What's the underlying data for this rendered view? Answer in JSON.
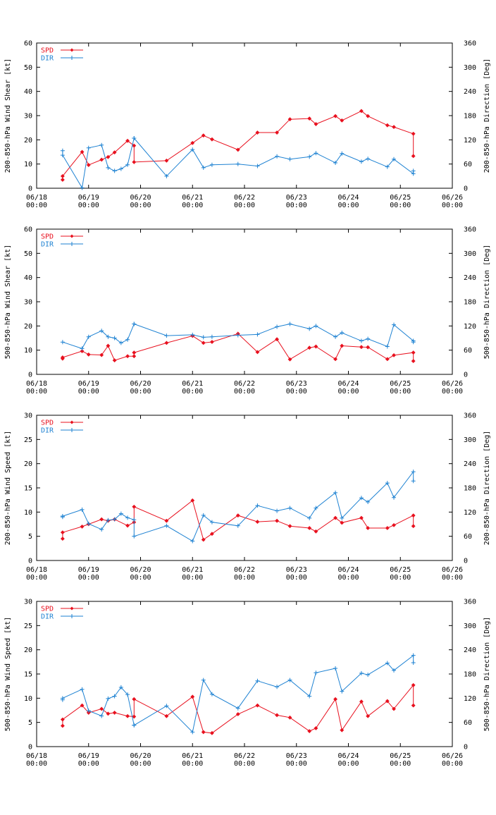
{
  "chart_data": [
    {
      "type": "line",
      "ylabel": "200-850-hPa Wind Shear [kt]",
      "y2label": "200-850-hPa Direction [Deg]",
      "ylim": [
        0,
        60
      ],
      "y2lim": [
        0,
        360
      ],
      "yticks": [
        "0",
        "10",
        "20",
        "30",
        "40",
        "50",
        "60"
      ],
      "y2ticks": [
        "0",
        "60",
        "120",
        "180",
        "240",
        "300",
        "360"
      ],
      "xlim": [
        0,
        8
      ],
      "xticks": [
        {
          "date": "06/18",
          "time": "00:00"
        },
        {
          "date": "06/19",
          "time": "00:00"
        },
        {
          "date": "06/20",
          "time": "00:00"
        },
        {
          "date": "06/21",
          "time": "00:00"
        },
        {
          "date": "06/22",
          "time": "00:00"
        },
        {
          "date": "06/23",
          "time": "00:00"
        },
        {
          "date": "06/24",
          "time": "00:00"
        },
        {
          "date": "06/25",
          "time": "00:00"
        },
        {
          "date": "06/26",
          "time": "00:00"
        }
      ],
      "legend": [
        "SPD",
        "DIR"
      ],
      "legend_position": "top-left",
      "series": [
        {
          "name": "SPD",
          "axis": "left",
          "color": "#e8101e",
          "x": [
            0.5,
            0.5,
            0.875,
            1.0,
            1.25,
            1.375,
            1.5,
            1.75,
            1.875,
            1.875,
            2.5,
            3.0,
            3.21,
            3.375,
            3.875,
            4.25,
            4.625,
            4.875,
            5.25,
            5.375,
            5.75,
            5.875,
            6.25,
            6.375,
            6.75,
            6.875,
            7.25,
            7.25
          ],
          "y": [
            3.5,
            5,
            15,
            9.6,
            11.8,
            12.9,
            14.8,
            19.6,
            17.6,
            10.8,
            11.4,
            18.7,
            21.8,
            20.2,
            15.9,
            23,
            23,
            28.5,
            28.8,
            26.5,
            29.8,
            28,
            31.9,
            29.8,
            26,
            25.3,
            22.5,
            13.3
          ]
        },
        {
          "name": "DIR",
          "axis": "right",
          "color": "#1e82d2",
          "x": [
            0.5,
            0.5,
            0.875,
            1.0,
            1.25,
            1.375,
            1.5,
            1.625,
            1.75,
            1.875,
            1.875,
            2.5,
            3.0,
            3.21,
            3.375,
            3.875,
            4.25,
            4.625,
            4.875,
            5.25,
            5.375,
            5.75,
            5.875,
            6.25,
            6.375,
            6.75,
            6.875,
            7.25,
            7.25
          ],
          "y": [
            93,
            82,
            1,
            100,
            107,
            51,
            43,
            48,
            58,
            124,
            124,
            30,
            96,
            51,
            58,
            60,
            55,
            79,
            72,
            78,
            87,
            63,
            86,
            66,
            73,
            53,
            72,
            36,
            43
          ]
        }
      ]
    },
    {
      "type": "line",
      "ylabel": "500-850-hPa Wind Shear [kt]",
      "y2label": "500-850-hPa Direction [Deg]",
      "ylim": [
        0,
        60
      ],
      "y2lim": [
        0,
        360
      ],
      "yticks": [
        "0",
        "10",
        "20",
        "30",
        "40",
        "50",
        "60"
      ],
      "y2ticks": [
        "0",
        "60",
        "120",
        "180",
        "240",
        "300",
        "360"
      ],
      "xlim": [
        0,
        8
      ],
      "xticks": [
        {
          "date": "06/18",
          "time": "00:00"
        },
        {
          "date": "06/19",
          "time": "00:00"
        },
        {
          "date": "06/20",
          "time": "00:00"
        },
        {
          "date": "06/21",
          "time": "00:00"
        },
        {
          "date": "06/22",
          "time": "00:00"
        },
        {
          "date": "06/23",
          "time": "00:00"
        },
        {
          "date": "06/24",
          "time": "00:00"
        },
        {
          "date": "06/25",
          "time": "00:00"
        },
        {
          "date": "06/26",
          "time": "00:00"
        }
      ],
      "legend": [
        "SPD",
        "DIR"
      ],
      "legend_position": "top-left",
      "series": [
        {
          "name": "SPD",
          "axis": "left",
          "color": "#e8101e",
          "x": [
            0.5,
            0.5,
            0.875,
            1.0,
            1.25,
            1.375,
            1.5,
            1.75,
            1.875,
            1.875,
            2.5,
            3.0,
            3.21,
            3.375,
            3.875,
            4.25,
            4.625,
            4.875,
            5.25,
            5.375,
            5.75,
            5.875,
            6.25,
            6.375,
            6.75,
            6.875,
            7.25,
            7.25
          ],
          "y": [
            6.5,
            7,
            9.6,
            8.2,
            8,
            11.8,
            5.8,
            7.5,
            7.5,
            9,
            13,
            15.9,
            13,
            13.4,
            16.8,
            9.2,
            14.5,
            6.2,
            11,
            11.5,
            6.3,
            11.8,
            11.3,
            11.2,
            6.3,
            7.9,
            9,
            5.5
          ]
        },
        {
          "name": "DIR",
          "axis": "right",
          "color": "#1e82d2",
          "x": [
            0.5,
            0.875,
            1.0,
            1.25,
            1.375,
            1.5,
            1.625,
            1.75,
            1.875,
            1.875,
            2.5,
            3.0,
            3.21,
            3.375,
            3.875,
            4.25,
            4.625,
            4.875,
            5.25,
            5.375,
            5.75,
            5.875,
            6.25,
            6.375,
            6.75,
            6.875,
            7.25,
            7.25
          ],
          "y": [
            80,
            64,
            93,
            108,
            93,
            90,
            78,
            86,
            125,
            125,
            96,
            98,
            92,
            93,
            97,
            99,
            118,
            125,
            113,
            120,
            93,
            103,
            83,
            88,
            69,
            123,
            83,
            80
          ]
        }
      ]
    },
    {
      "type": "line",
      "ylabel": "200-850-hPa Wind Speed [kt]",
      "y2label": "200-850-hPa Direction [Deg]",
      "ylim": [
        0,
        30
      ],
      "y2lim": [
        0,
        360
      ],
      "yticks": [
        "0",
        "5",
        "10",
        "15",
        "20",
        "25",
        "30"
      ],
      "y2ticks": [
        "0",
        "60",
        "120",
        "180",
        "240",
        "300",
        "360"
      ],
      "xlim": [
        0,
        8
      ],
      "xticks": [
        {
          "date": "06/18",
          "time": "00:00"
        },
        {
          "date": "06/19",
          "time": "00:00"
        },
        {
          "date": "06/20",
          "time": "00:00"
        },
        {
          "date": "06/21",
          "time": "00:00"
        },
        {
          "date": "06/22",
          "time": "00:00"
        },
        {
          "date": "06/23",
          "time": "00:00"
        },
        {
          "date": "06/24",
          "time": "00:00"
        },
        {
          "date": "06/25",
          "time": "00:00"
        },
        {
          "date": "06/26",
          "time": "00:00"
        }
      ],
      "legend": [
        "SPD",
        "DIR"
      ],
      "legend_position": "top-left",
      "series": [
        {
          "name": "SPD",
          "axis": "left",
          "color": "#e8101e",
          "x": [
            0.5,
            0.5,
            0.875,
            1.0,
            1.25,
            1.375,
            1.5,
            1.75,
            1.875,
            1.875,
            2.5,
            3.0,
            3.21,
            3.375,
            3.875,
            4.25,
            4.625,
            4.875,
            5.25,
            5.375,
            5.75,
            5.875,
            6.25,
            6.375,
            6.75,
            6.875,
            7.25,
            7.25
          ],
          "y": [
            4.5,
            5.8,
            7,
            7.5,
            8.5,
            8.2,
            8.5,
            7.2,
            7.9,
            11.1,
            8.2,
            12.4,
            4.3,
            5.5,
            9.3,
            8,
            8.2,
            7.1,
            6.7,
            6,
            8.8,
            7.8,
            8.8,
            6.7,
            6.7,
            7.3,
            9.3,
            7.1
          ]
        },
        {
          "name": "DIR",
          "axis": "right",
          "color": "#1e82d2",
          "x": [
            0.5,
            0.5,
            0.875,
            1.0,
            1.25,
            1.375,
            1.5,
            1.625,
            1.75,
            1.875,
            1.875,
            2.5,
            3.0,
            3.21,
            3.375,
            3.875,
            4.25,
            4.625,
            4.875,
            5.25,
            5.375,
            5.75,
            5.875,
            6.25,
            6.375,
            6.75,
            6.875,
            7.25,
            7.25
          ],
          "y": [
            108,
            110,
            126,
            91,
            77,
            100,
            102,
            116,
            106,
            101,
            60,
            86,
            48,
            112,
            95,
            86,
            136,
            123,
            130,
            105,
            130,
            168,
            105,
            155,
            145,
            192,
            156,
            220,
            197
          ]
        }
      ]
    },
    {
      "type": "line",
      "ylabel": "500-850-hPa Wind Speed [kt]",
      "y2label": "500-850-hPa Direction [Deg]",
      "ylim": [
        0,
        30
      ],
      "y2lim": [
        0,
        360
      ],
      "yticks": [
        "0",
        "5",
        "10",
        "15",
        "20",
        "25",
        "30"
      ],
      "y2ticks": [
        "0",
        "60",
        "120",
        "180",
        "240",
        "300",
        "360"
      ],
      "xlim": [
        0,
        8
      ],
      "xticks": [
        {
          "date": "06/18",
          "time": "00:00"
        },
        {
          "date": "06/19",
          "time": "00:00"
        },
        {
          "date": "06/20",
          "time": "00:00"
        },
        {
          "date": "06/21",
          "time": "00:00"
        },
        {
          "date": "06/22",
          "time": "00:00"
        },
        {
          "date": "06/23",
          "time": "00:00"
        },
        {
          "date": "06/24",
          "time": "00:00"
        },
        {
          "date": "06/25",
          "time": "00:00"
        },
        {
          "date": "06/26",
          "time": "00:00"
        }
      ],
      "legend": [
        "SPD",
        "DIR"
      ],
      "legend_position": "top-left",
      "series": [
        {
          "name": "SPD",
          "axis": "left",
          "color": "#e8101e",
          "x": [
            0.5,
            0.5,
            0.875,
            1.0,
            1.25,
            1.375,
            1.5,
            1.75,
            1.875,
            1.875,
            2.5,
            3.0,
            3.21,
            3.375,
            3.875,
            4.25,
            4.625,
            4.875,
            5.25,
            5.375,
            5.75,
            5.875,
            6.25,
            6.375,
            6.75,
            6.875,
            7.25,
            7.25
          ],
          "y": [
            4.3,
            5.6,
            8.5,
            7,
            7.8,
            6.8,
            7,
            6.3,
            6.2,
            9.8,
            6.3,
            10.3,
            3,
            2.8,
            6.7,
            8.5,
            6.5,
            6,
            3.2,
            3.8,
            9.8,
            3.4,
            9.3,
            6.3,
            9.4,
            7.8,
            12.7,
            8.5
          ]
        },
        {
          "name": "DIR",
          "axis": "right",
          "color": "#1e82d2",
          "x": [
            0.5,
            0.5,
            0.875,
            1.0,
            1.25,
            1.375,
            1.5,
            1.625,
            1.75,
            1.875,
            1.875,
            2.5,
            3.0,
            3.21,
            3.375,
            3.875,
            4.25,
            4.625,
            4.875,
            5.25,
            5.375,
            5.75,
            5.875,
            6.25,
            6.375,
            6.75,
            6.875,
            7.25,
            7.25
          ],
          "y": [
            116,
            120,
            142,
            89,
            76,
            119,
            125,
            147,
            129,
            53,
            53,
            101,
            36,
            165,
            130,
            95,
            163,
            148,
            165,
            125,
            183,
            194,
            137,
            182,
            178,
            207,
            189,
            226,
            208
          ]
        }
      ]
    }
  ]
}
